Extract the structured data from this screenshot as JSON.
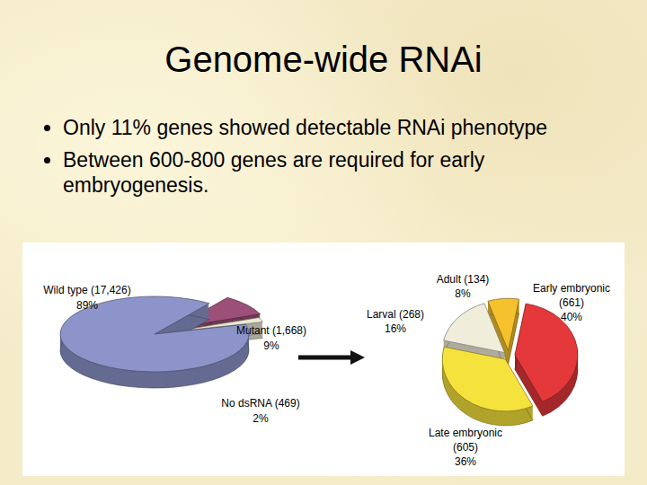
{
  "title": "Genome-wide RNAi",
  "bullets": [
    "Only 11% genes showed detectable RNAi phenotype",
    "Between 600-800 genes are required for early embryogenesis."
  ],
  "chart_data": [
    {
      "type": "pie",
      "categories": [
        "Wild type",
        "Mutant",
        "No dsRNA"
      ],
      "values": [
        89,
        9,
        2
      ],
      "value_labels": [
        "89%",
        "9%",
        "2%"
      ],
      "counts": [
        {
          "value": 17426,
          "label": "(17,426)"
        },
        {
          "value": 1668,
          "label": "(1,668)"
        },
        {
          "value": 469,
          "label": "(469)"
        }
      ],
      "colors": [
        "#8c94c9",
        "#9c4f78",
        "#e9ead6"
      ]
    },
    {
      "type": "pie",
      "categories": [
        "Early embryonic",
        "Late embryonic",
        "Larval",
        "Adult"
      ],
      "values": [
        40,
        36,
        16,
        8
      ],
      "value_labels": [
        "40%",
        "36%",
        "16%",
        "8%"
      ],
      "counts": [
        {
          "value": 661,
          "label": "(661)"
        },
        {
          "value": 605,
          "label": "(605)"
        },
        {
          "value": 268,
          "label": "(268)"
        },
        {
          "value": 134,
          "label": "(134)"
        }
      ],
      "colors": [
        "#e4383a",
        "#f6e23c",
        "#f1eddb",
        "#f5c22e"
      ]
    }
  ]
}
